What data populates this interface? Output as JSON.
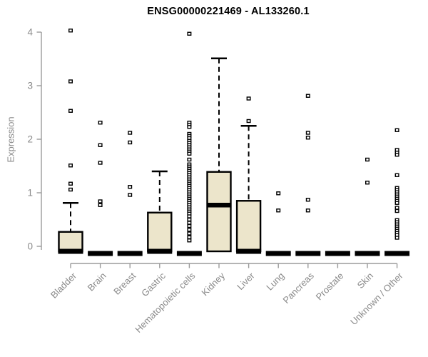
{
  "chart_data": {
    "type": "boxplot",
    "title": "ENSG00000221469 - AL133260.1",
    "ylabel": "Expression",
    "xlabel": "",
    "ylim": [
      0,
      4
    ],
    "yticks": [
      0,
      1,
      2,
      3,
      4
    ],
    "grid": false,
    "legend": "none",
    "box_fill": "#ece5cb",
    "box_stroke": "#000000",
    "axis_color": "#9b9b9b",
    "label_color": "#8a8a8a",
    "title_color": "#000000",
    "categories": [
      "Bladder",
      "Brain",
      "Breast",
      "Gastric",
      "Hematopoietic cells",
      "Kidney",
      "Liver",
      "Lung",
      "Pancreas",
      "Prostate",
      "Skin",
      "Unknown / Other"
    ],
    "boxes": [
      {
        "category": "Bladder",
        "q1": 0,
        "median": 0,
        "q3": 0.27,
        "whisker_low": 0,
        "whisker_high": 0.81,
        "outliers": [
          4.03,
          3.08,
          2.53,
          1.51,
          1.17,
          1.06
        ]
      },
      {
        "category": "Brain",
        "q1": 0,
        "median": 0,
        "q3": 0,
        "whisker_low": 0,
        "whisker_high": 0,
        "outliers": [
          2.31,
          1.89,
          1.56,
          0.84,
          0.77
        ]
      },
      {
        "category": "Breast",
        "q1": 0,
        "median": 0,
        "q3": 0,
        "whisker_low": 0,
        "whisker_high": 0,
        "outliers": [
          2.12,
          1.94,
          1.11,
          0.96
        ]
      },
      {
        "category": "Gastric",
        "q1": 0,
        "median": 0,
        "q3": 0.63,
        "whisker_low": 0,
        "whisker_high": 1.4,
        "outliers": []
      },
      {
        "category": "Hematopoietic cells",
        "q1": 0,
        "median": 0,
        "q3": 0,
        "whisker_low": 0,
        "whisker_high": 0,
        "outliers": [
          3.97,
          2.31,
          2.27,
          2.23,
          2.1,
          2.06,
          2.02,
          1.97,
          1.93,
          1.89,
          1.85,
          1.81,
          1.77,
          1.73,
          1.62,
          1.53,
          1.49,
          1.45,
          1.41,
          1.37,
          1.33,
          1.29,
          1.25,
          1.21,
          1.17,
          1.13,
          1.09,
          1.05,
          1.01,
          0.97,
          0.93,
          0.89,
          0.85,
          0.81,
          0.77,
          0.73,
          0.69,
          0.65,
          0.61,
          0.56,
          0.5,
          0.44,
          0.38,
          0.31,
          0.24,
          0.17,
          0.11
        ]
      },
      {
        "category": "Kidney",
        "q1": 0,
        "median": 0.77,
        "q3": 1.39,
        "whisker_low": 0,
        "whisker_high": 3.51,
        "outliers": []
      },
      {
        "category": "Liver",
        "q1": 0,
        "median": 0,
        "q3": 0.85,
        "whisker_low": 0,
        "whisker_high": 2.25,
        "outliers": [
          2.76,
          2.34
        ]
      },
      {
        "category": "Lung",
        "q1": 0,
        "median": 0,
        "q3": 0,
        "whisker_low": 0,
        "whisker_high": 0,
        "outliers": [
          0.99,
          0.67
        ]
      },
      {
        "category": "Pancreas",
        "q1": 0,
        "median": 0,
        "q3": 0,
        "whisker_low": 0,
        "whisker_high": 0,
        "outliers": [
          2.81,
          2.12,
          2.03,
          0.87,
          0.67
        ]
      },
      {
        "category": "Prostate",
        "q1": 0,
        "median": 0,
        "q3": 0,
        "whisker_low": 0,
        "whisker_high": 0,
        "outliers": []
      },
      {
        "category": "Skin",
        "q1": 0,
        "median": 0,
        "q3": 0,
        "whisker_low": 0,
        "whisker_high": 0,
        "outliers": [
          1.62,
          1.19
        ]
      },
      {
        "category": "Unknown / Other",
        "q1": 0,
        "median": 0,
        "q3": 0,
        "whisker_low": 0,
        "whisker_high": 0,
        "outliers": [
          2.17,
          1.8,
          1.75,
          1.71,
          1.33,
          1.09,
          1.05,
          1.01,
          0.97,
          0.93,
          0.89,
          0.85,
          0.81,
          0.72,
          0.66,
          0.49,
          0.45,
          0.41,
          0.37,
          0.33,
          0.29,
          0.25,
          0.21,
          0.16
        ]
      }
    ]
  }
}
